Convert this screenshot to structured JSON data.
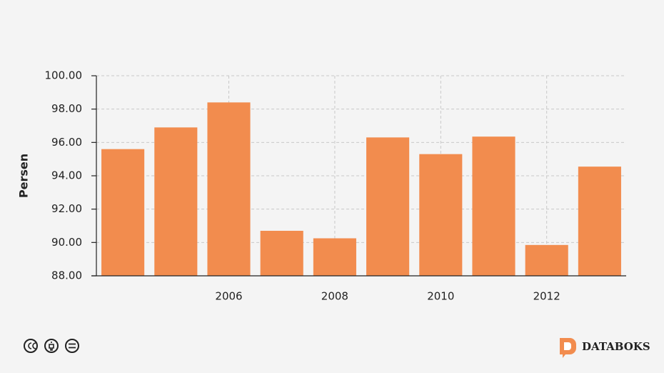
{
  "chart_data": {
    "type": "bar",
    "y_label": "Persen",
    "categories": [
      null,
      null,
      "2006",
      null,
      "2008",
      null,
      "2010",
      null,
      "2012",
      null
    ],
    "values": [
      95.6,
      96.9,
      98.4,
      90.7,
      90.25,
      96.3,
      95.3,
      96.35,
      89.85,
      94.55
    ],
    "color": "#f28c4e",
    "ylim": [
      88,
      100
    ],
    "yticks": [
      {
        "value": 88,
        "label": "88.00"
      },
      {
        "value": 90,
        "label": "90.00"
      },
      {
        "value": 92,
        "label": "92.00"
      },
      {
        "value": 94,
        "label": "94.00"
      },
      {
        "value": 96,
        "label": "96.00"
      },
      {
        "value": 98,
        "label": "98.00"
      },
      {
        "value": 100,
        "label": "100.00"
      }
    ],
    "grid": true
  },
  "footer": {
    "brand": "DATABOKS"
  }
}
